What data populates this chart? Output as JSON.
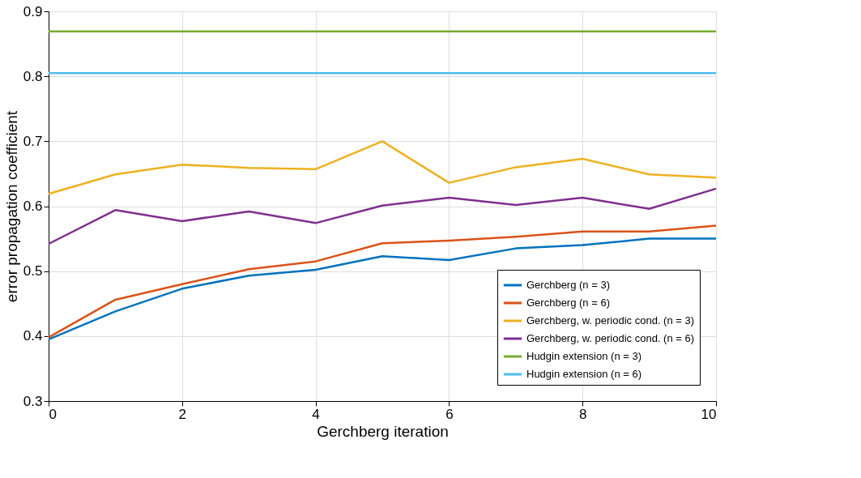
{
  "chart_data": {
    "type": "line",
    "xlabel": "Gerchberg iteration",
    "ylabel": "error propagation coefficient",
    "x": [
      0,
      1,
      2,
      3,
      4,
      5,
      6,
      7,
      8,
      9,
      10
    ],
    "series": [
      {
        "name": "Gerchberg (n = 3)",
        "color": "#0072bd",
        "values": [
          0.395,
          0.438,
          0.473,
          0.493,
          0.502,
          0.523,
          0.517,
          0.535,
          0.54,
          0.55,
          0.55
        ]
      },
      {
        "name": "Gerchberg (n = 6)",
        "color": "#d95319",
        "values": [
          0.398,
          0.456,
          0.48,
          0.503,
          0.515,
          0.543,
          0.547,
          0.553,
          0.561,
          0.561,
          0.57
        ]
      },
      {
        "name": "Gerchberg, w. periodic cond. (n = 3)",
        "color": "#edb120",
        "values": [
          0.619,
          0.649,
          0.664,
          0.659,
          0.657,
          0.7,
          0.636,
          0.66,
          0.673,
          0.649,
          0.644
        ]
      },
      {
        "name": "Gerchberg, w. periodic cond. (n = 6)",
        "color": "#7e2f8e",
        "values": [
          0.542,
          0.594,
          0.577,
          0.592,
          0.574,
          0.601,
          0.613,
          0.602,
          0.613,
          0.596,
          0.627
        ]
      },
      {
        "name": "Hudgin extension (n = 3)",
        "color": "#77ac30",
        "values": [
          0.869,
          0.869,
          0.869,
          0.869,
          0.869,
          0.869,
          0.869,
          0.869,
          0.869,
          0.869,
          0.869
        ]
      },
      {
        "name": "Hudgin extension (n = 6)",
        "color": "#4dbeee",
        "values": [
          0.805,
          0.805,
          0.805,
          0.805,
          0.805,
          0.805,
          0.805,
          0.805,
          0.805,
          0.805,
          0.805
        ]
      }
    ],
    "xlim": [
      0,
      10
    ],
    "xticks": [
      0,
      2,
      4,
      6,
      8,
      10
    ],
    "ylim": [
      0.3,
      0.9
    ],
    "yticks": [
      0.3,
      0.4,
      0.5,
      0.6,
      0.7,
      0.8,
      0.9
    ],
    "grid": true,
    "legend": "bottom right",
    "marker": "none",
    "line_style": "solid"
  }
}
